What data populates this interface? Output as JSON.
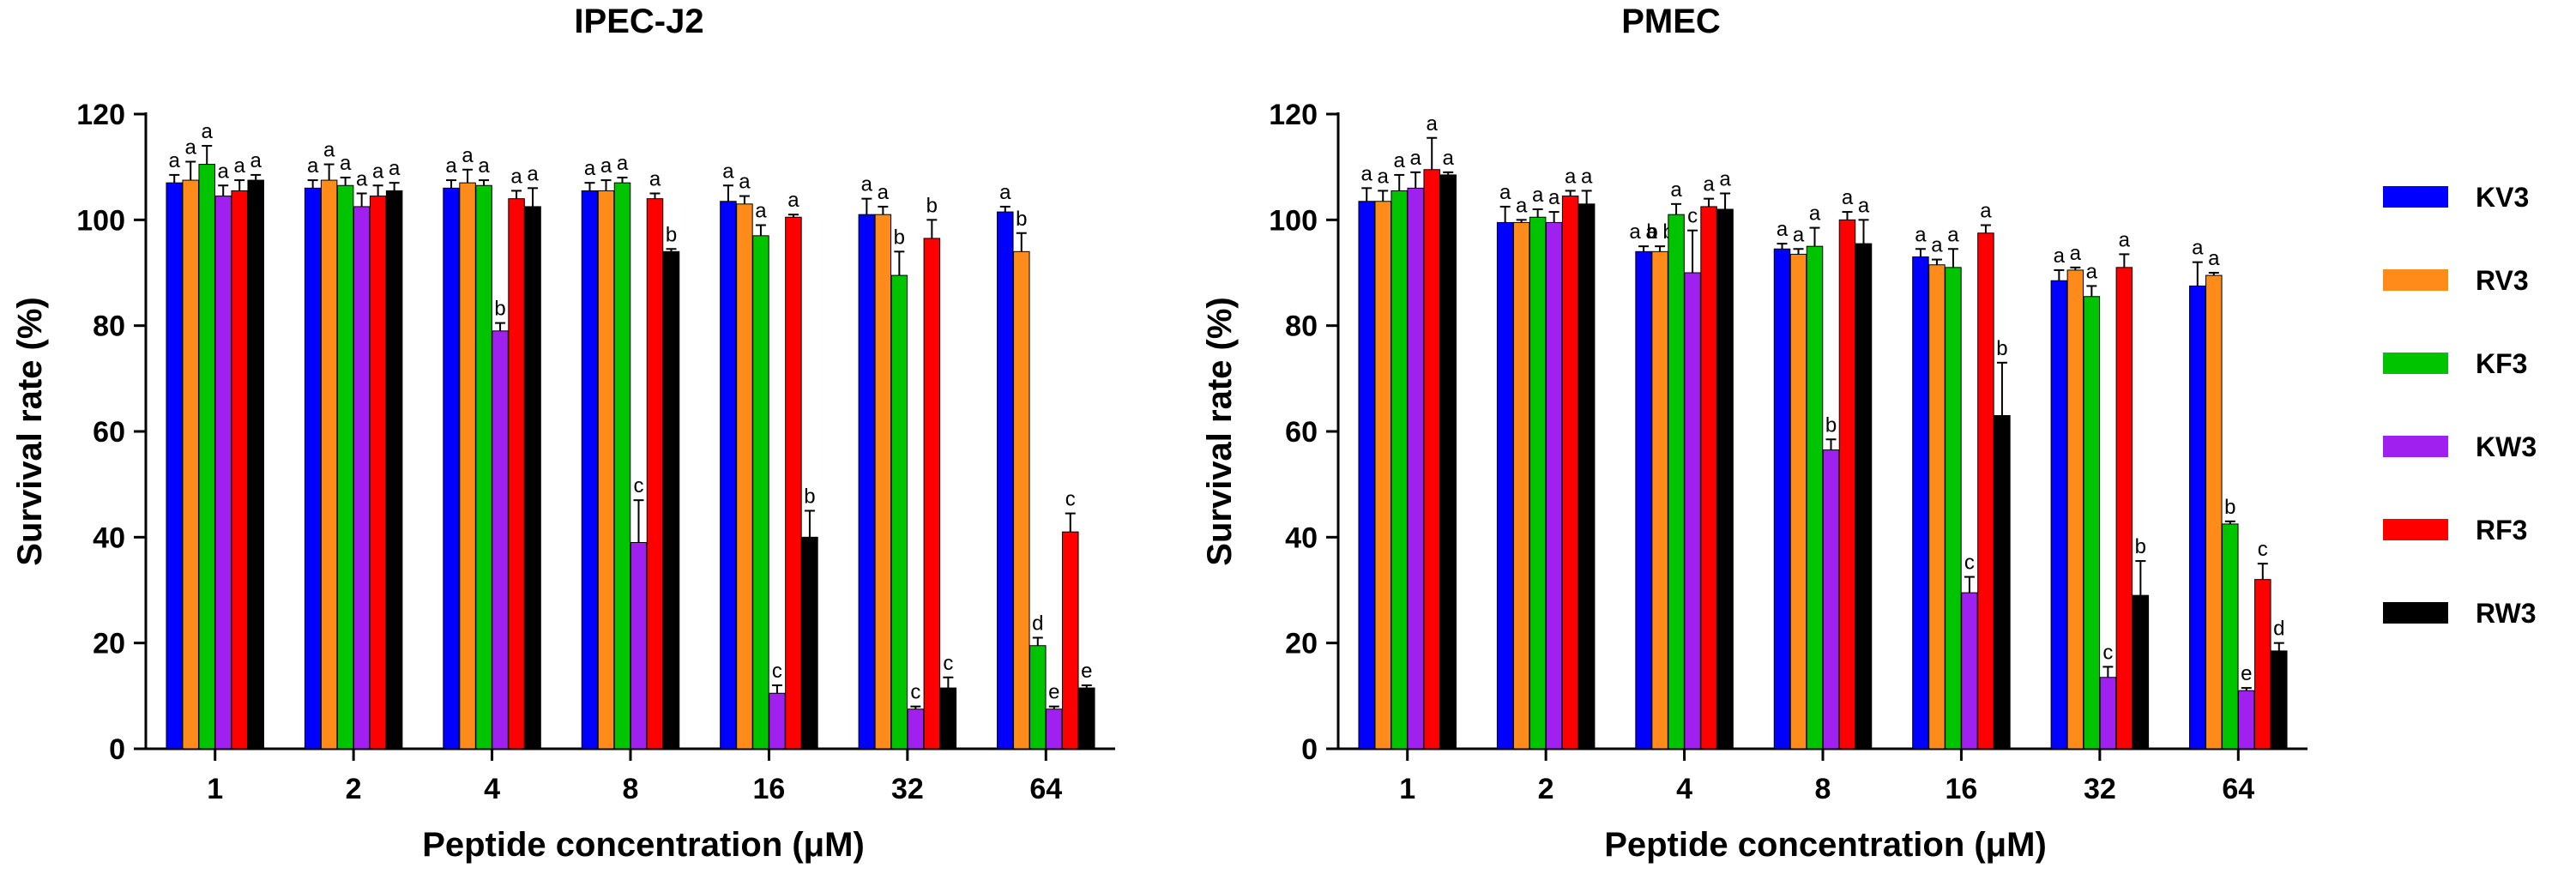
{
  "chart_data": [
    {
      "type": "bar",
      "title": "IPEC-J2",
      "xlabel": "Peptide concentration (μM)",
      "ylabel": "Survival rate (%)",
      "ylim": [
        0,
        120
      ],
      "yticks": [
        "0",
        "20",
        "40",
        "60",
        "80",
        "100",
        "120"
      ],
      "categories": [
        "1",
        "2",
        "4",
        "8",
        "16",
        "32",
        "64"
      ],
      "series": [
        {
          "name": "KV3",
          "color": "#0000ff",
          "values": [
            107,
            106,
            106,
            105.5,
            103.5,
            101,
            101.5
          ],
          "errors": [
            1.5,
            1.5,
            1.5,
            1.5,
            3,
            3,
            1
          ],
          "letters": [
            "a",
            "a",
            "a",
            "a",
            "a",
            "a",
            "a"
          ]
        },
        {
          "name": "RV3",
          "color": "#ff8c1a",
          "values": [
            107.5,
            107.5,
            107,
            105.5,
            103,
            101,
            94
          ],
          "errors": [
            3.5,
            3,
            2.5,
            2,
            1.5,
            1.5,
            3.5
          ],
          "letters": [
            "a",
            "a",
            "a",
            "a",
            "a",
            "a",
            "b"
          ]
        },
        {
          "name": "KF3",
          "color": "#00c400",
          "values": [
            110.5,
            106.5,
            106.5,
            107,
            97,
            89.5,
            19.5
          ],
          "errors": [
            3.5,
            1.5,
            1,
            1,
            2,
            4.5,
            1.5
          ],
          "letters": [
            "a",
            "a",
            "a",
            "a",
            "a",
            "b",
            "d"
          ]
        },
        {
          "name": "KW3",
          "color": "#a020f0",
          "values": [
            104.5,
            102.5,
            79,
            39,
            10.5,
            7.5,
            7.5
          ],
          "errors": [
            2,
            2.5,
            1.5,
            8,
            1.5,
            0.5,
            0.5
          ],
          "letters": [
            "a",
            "a",
            "b",
            "c",
            "c",
            "c",
            "e"
          ]
        },
        {
          "name": "RF3",
          "color": "#ff0000",
          "values": [
            105.5,
            104.5,
            104,
            104,
            100.5,
            96.5,
            41
          ],
          "errors": [
            2,
            2,
            1.5,
            1,
            0.5,
            3.5,
            3.5
          ],
          "letters": [
            "a",
            "a",
            "a",
            "a",
            "a",
            "b",
            "c"
          ]
        },
        {
          "name": "RW3",
          "color": "#000000",
          "values": [
            107.5,
            105.5,
            102.5,
            94,
            40,
            11.5,
            11.5
          ],
          "errors": [
            1,
            1.5,
            3.5,
            0.5,
            5,
            2,
            0.5
          ],
          "letters": [
            "a",
            "a",
            "a",
            "b",
            "b",
            "c",
            "e"
          ]
        }
      ]
    },
    {
      "type": "bar",
      "title": "PMEC",
      "xlabel": "Peptide concentration (μM)",
      "ylabel": "Survival rate (%)",
      "ylim": [
        0,
        120
      ],
      "yticks": [
        "0",
        "20",
        "40",
        "60",
        "80",
        "100",
        "120"
      ],
      "categories": [
        "1",
        "2",
        "4",
        "8",
        "16",
        "32",
        "64"
      ],
      "series": [
        {
          "name": "KV3",
          "color": "#0000ff",
          "values": [
            103.5,
            99.5,
            94,
            94.5,
            93,
            88.5,
            87.5
          ],
          "errors": [
            2.5,
            3,
            1,
            1,
            1.5,
            2,
            4.5
          ],
          "letters": [
            "a",
            "a",
            "a b",
            "a",
            "a",
            "a",
            "a"
          ]
        },
        {
          "name": "RV3",
          "color": "#ff8c1a",
          "values": [
            103.5,
            99.5,
            94,
            93.5,
            91.5,
            90.5,
            89.5
          ],
          "errors": [
            2,
            0.5,
            1,
            1,
            1,
            0.5,
            0.5
          ],
          "letters": [
            "a",
            "a",
            "a b",
            "a",
            "a",
            "a",
            "a"
          ]
        },
        {
          "name": "KF3",
          "color": "#00c400",
          "values": [
            105.5,
            100.5,
            101,
            95,
            91,
            85.5,
            42.5
          ],
          "errors": [
            3,
            1.5,
            2,
            3.5,
            3.5,
            2,
            0.5
          ],
          "letters": [
            "a",
            "a",
            "a",
            "a",
            "a",
            "a",
            "b"
          ]
        },
        {
          "name": "KW3",
          "color": "#a020f0",
          "values": [
            106,
            99.5,
            90,
            56.5,
            29.5,
            13.5,
            11
          ],
          "errors": [
            3,
            2,
            8,
            2,
            3,
            2,
            0.5
          ],
          "letters": [
            "a",
            "a",
            "c",
            "b",
            "c",
            "c",
            "e"
          ]
        },
        {
          "name": "RF3",
          "color": "#ff0000",
          "values": [
            109.5,
            104.5,
            102.5,
            100,
            97.5,
            91,
            32
          ],
          "errors": [
            6,
            1,
            1.5,
            1.5,
            1.5,
            2.5,
            3
          ],
          "letters": [
            "a",
            "a",
            "a",
            "a",
            "a",
            "a",
            "c"
          ]
        },
        {
          "name": "RW3",
          "color": "#000000",
          "values": [
            108.5,
            103,
            102,
            95.5,
            63,
            29,
            18.5
          ],
          "errors": [
            0.5,
            2.5,
            3,
            4.5,
            10,
            6.5,
            1.5
          ],
          "letters": [
            "a",
            "a",
            "a",
            "a",
            "b",
            "b",
            "d"
          ]
        }
      ]
    }
  ]
}
